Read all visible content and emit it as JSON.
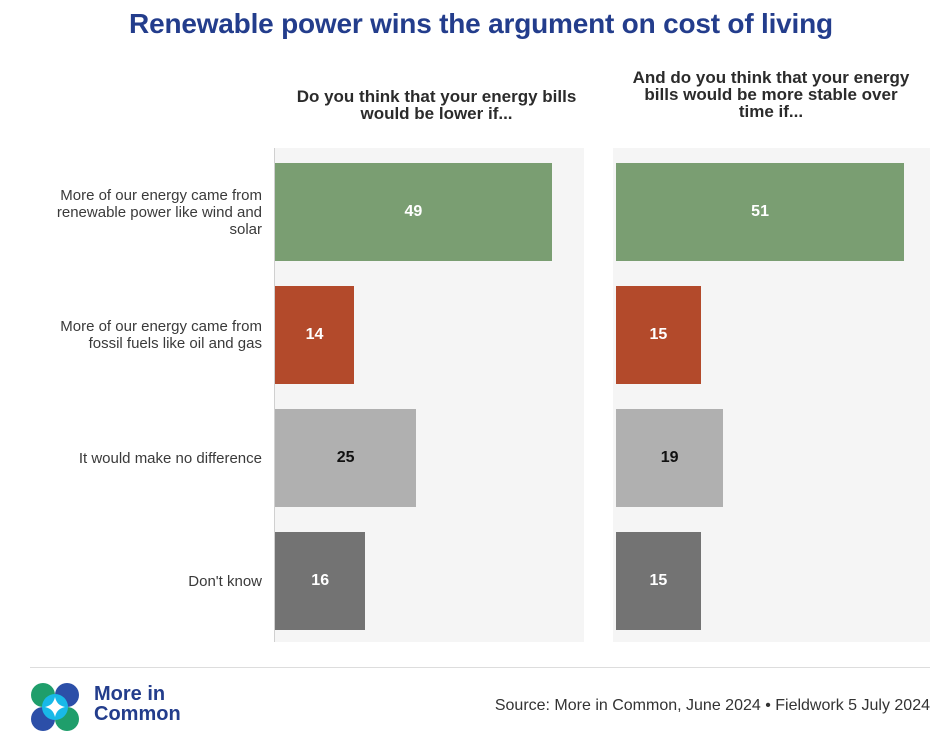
{
  "title": "Renewable power wins the argument on cost of living",
  "chart_data": {
    "type": "bar",
    "orientation": "horizontal",
    "categories": [
      "More of our energy came from renewable power like wind and solar",
      "More of our energy came from fossil fuels like oil and gas",
      "It would make no difference",
      "Don't know"
    ],
    "category_lines": [
      [
        "More of our energy came from",
        "renewable power like wind and",
        "solar"
      ],
      [
        "More of our energy came from",
        "fossil fuels like oil and gas"
      ],
      [
        "It would make no difference"
      ],
      [
        "Don't know"
      ]
    ],
    "bar_colors": [
      "#7a9e72",
      "#b34a2b",
      "#b0b0b0",
      "#737373"
    ],
    "label_colors": [
      "#ffffff",
      "#ffffff",
      "#111111",
      "#ffffff"
    ],
    "xlim": [
      0,
      55
    ],
    "panels": [
      {
        "title_lines": [
          "Do you think that your energy bills",
          "would be lower if..."
        ],
        "values": [
          49,
          14,
          25,
          16
        ]
      },
      {
        "title_lines": [
          "And do you think that your energy",
          "bills would be more stable over",
          "time if..."
        ],
        "values": [
          51,
          15,
          19,
          15
        ]
      }
    ]
  },
  "footer": {
    "logo_line1": "More in",
    "logo_line2": "Common",
    "source": "Source: More in Common, June 2024 • Fieldwork 5 July 2024"
  }
}
